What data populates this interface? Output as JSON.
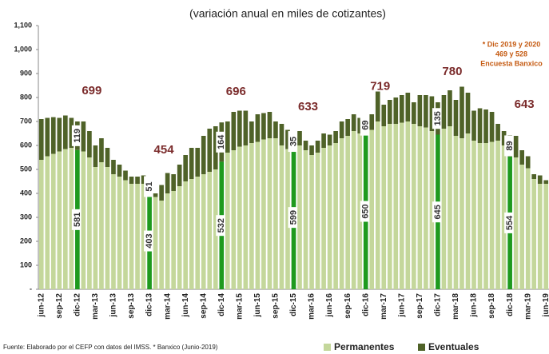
{
  "chart_data": {
    "type": "stacked-bar",
    "title": "(variación anual en miles de cotizantes)",
    "source": "Fuente: Elaborado por el CEFP con datos del IMSS. * Banxico (Junio-2019)",
    "note": [
      "* Dic 2019 y 2020",
      "469 y 528",
      "Encuesta Banxico"
    ],
    "note_color": "#c55a11",
    "categories": [
      "jun-12",
      null,
      null,
      "sep-12",
      null,
      null,
      "dic-12",
      null,
      null,
      "mar-13",
      null,
      null,
      "jun-13",
      null,
      null,
      "sep-13",
      null,
      null,
      "dic-13",
      null,
      null,
      "mar-14",
      null,
      null,
      "jun-14",
      null,
      null,
      "sep-14",
      null,
      null,
      "dic-14",
      null,
      null,
      "mar-15",
      null,
      null,
      "jun-15",
      null,
      null,
      "sep-15",
      null,
      null,
      "dic-15",
      null,
      null,
      "mar-16",
      null,
      null,
      "jun-16",
      null,
      null,
      "sep-16",
      null,
      null,
      "dic-16",
      null,
      null,
      "mar-17",
      null,
      null,
      "jun-17",
      null,
      null,
      "sep-17",
      null,
      null,
      "dic-17",
      null,
      null,
      "mar-18",
      null,
      null,
      "jun-18",
      null,
      null,
      "sep-18",
      null,
      null,
      "dic-18",
      null,
      null,
      "mar-19",
      null,
      null,
      "jun-19"
    ],
    "series": [
      {
        "name": "Permanentes",
        "color": "#c4d79b",
        "values": [
          540,
          555,
          565,
          575,
          585,
          590,
          581,
          575,
          550,
          510,
          530,
          510,
          480,
          470,
          455,
          440,
          440,
          440,
          403,
          385,
          370,
          400,
          410,
          430,
          450,
          460,
          470,
          480,
          490,
          500,
          532,
          570,
          580,
          595,
          600,
          610,
          615,
          625,
          630,
          630,
          600,
          585,
          599,
          600,
          580,
          560,
          570,
          590,
          600,
          610,
          630,
          640,
          660,
          650,
          650,
          665,
          700,
          680,
          690,
          690,
          695,
          700,
          690,
          680,
          675,
          660,
          645,
          670,
          680,
          640,
          630,
          650,
          620,
          610,
          610,
          615,
          620,
          600,
          554,
          550,
          520,
          505,
          460,
          440,
          440
        ]
      },
      {
        "name": "Eventuales",
        "color": "#4f6228",
        "values": [
          170,
          160,
          153,
          140,
          140,
          125,
          119,
          125,
          110,
          90,
          100,
          80,
          60,
          50,
          40,
          30,
          30,
          35,
          51,
          15,
          65,
          85,
          70,
          90,
          110,
          130,
          120,
          160,
          180,
          180,
          164,
          130,
          160,
          150,
          145,
          90,
          115,
          110,
          110,
          70,
          90,
          80,
          35,
          60,
          40,
          40,
          50,
          60,
          45,
          50,
          70,
          70,
          70,
          65,
          69,
          65,
          125,
          90,
          100,
          110,
          115,
          120,
          90,
          130,
          135,
          145,
          135,
          140,
          150,
          150,
          215,
          170,
          125,
          145,
          140,
          125,
          70,
          60,
          89,
          90,
          60,
          50,
          20,
          35,
          15
        ]
      }
    ],
    "highlight_categories": [
      "dic-12",
      "dic-13",
      "dic-14",
      "dic-15",
      "dic-16",
      "dic-17",
      "dic-18"
    ],
    "highlight_color": "#1e9a1e",
    "annotations": [
      {
        "text": "699",
        "x": "dic-12"
      },
      {
        "text": "454",
        "x": "dic-13"
      },
      {
        "text": "696",
        "x": "dic-14"
      },
      {
        "text": "633",
        "x": "dic-15"
      },
      {
        "text": "719",
        "x": "dic-16"
      },
      {
        "text": "780",
        "x": "dic-17"
      },
      {
        "text": "643",
        "x": "dic-18"
      }
    ],
    "annotation_color": "#7b2c2c",
    "ylim": [
      0,
      1100
    ],
    "yticks": [
      {
        "value": 0,
        "label": "-"
      },
      100,
      200,
      300,
      400,
      500,
      600,
      700,
      800,
      900,
      {
        "value": 1000,
        "label": "1,000"
      },
      {
        "value": 1100,
        "label": "1,100"
      }
    ],
    "legend": "bottom-right"
  }
}
